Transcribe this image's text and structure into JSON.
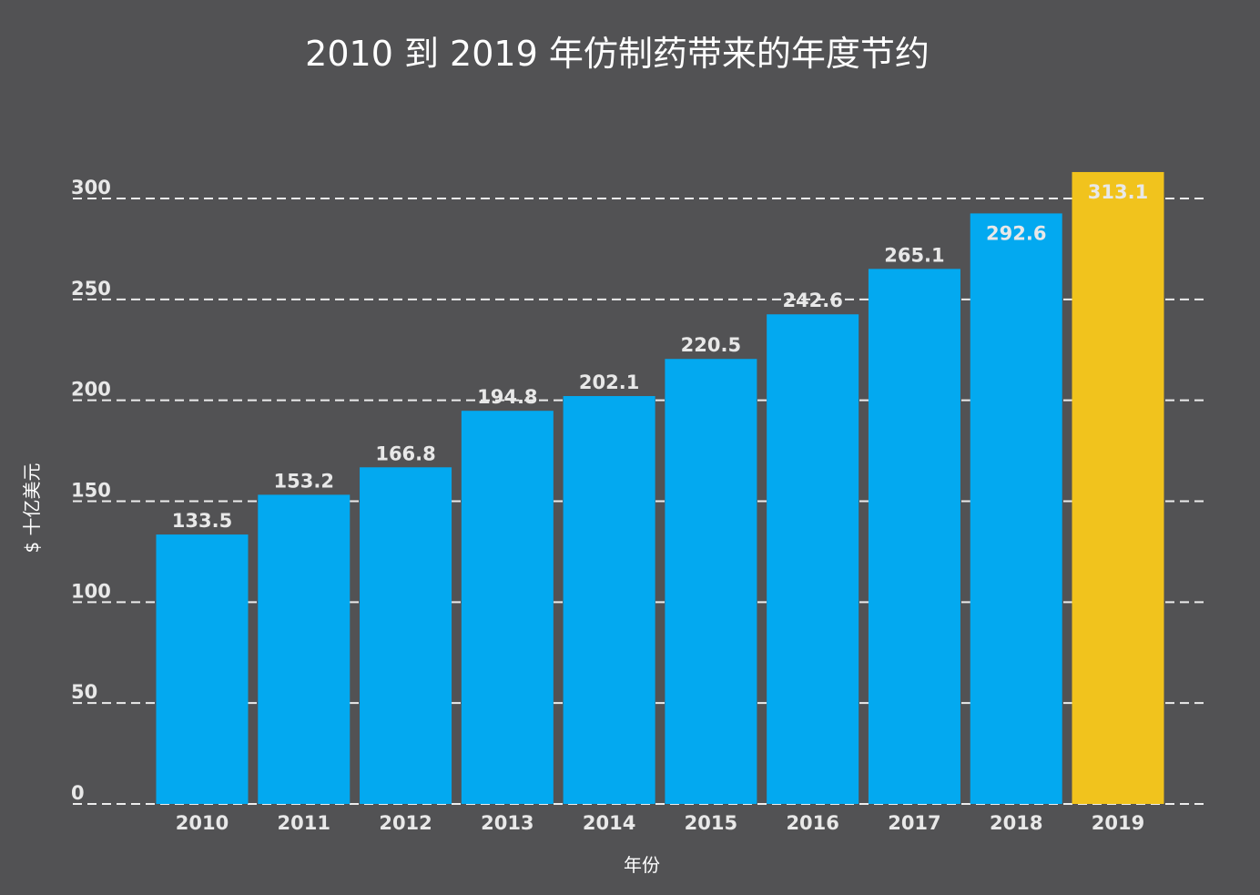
{
  "chart_data": {
    "type": "bar",
    "title": "2010 到 2019 年仿制药带来的年度节约",
    "xlabel": "年份",
    "ylabel": "$ 十亿美元",
    "categories": [
      "2010",
      "2011",
      "2012",
      "2013",
      "2014",
      "2015",
      "2016",
      "2017",
      "2018",
      "2019"
    ],
    "values": [
      133.5,
      153.2,
      166.8,
      194.8,
      202.1,
      220.5,
      242.6,
      265.1,
      292.6,
      313.1
    ],
    "value_labels": [
      "133.5",
      "153.2",
      "166.8",
      "194.8",
      "202.1",
      "220.5",
      "242.6",
      "265.1",
      "292.6",
      "313.1"
    ],
    "ylim": [
      0,
      300
    ],
    "yticks": [
      0,
      50,
      100,
      150,
      200,
      250,
      300
    ],
    "ytick_labels": [
      "0",
      "50",
      "100",
      "150",
      "200",
      "250",
      "300"
    ],
    "grid": true,
    "bar_color": "#03A9F0",
    "highlight_color": "#F1C31D",
    "highlight_index": 9,
    "background_color": "#525254"
  }
}
